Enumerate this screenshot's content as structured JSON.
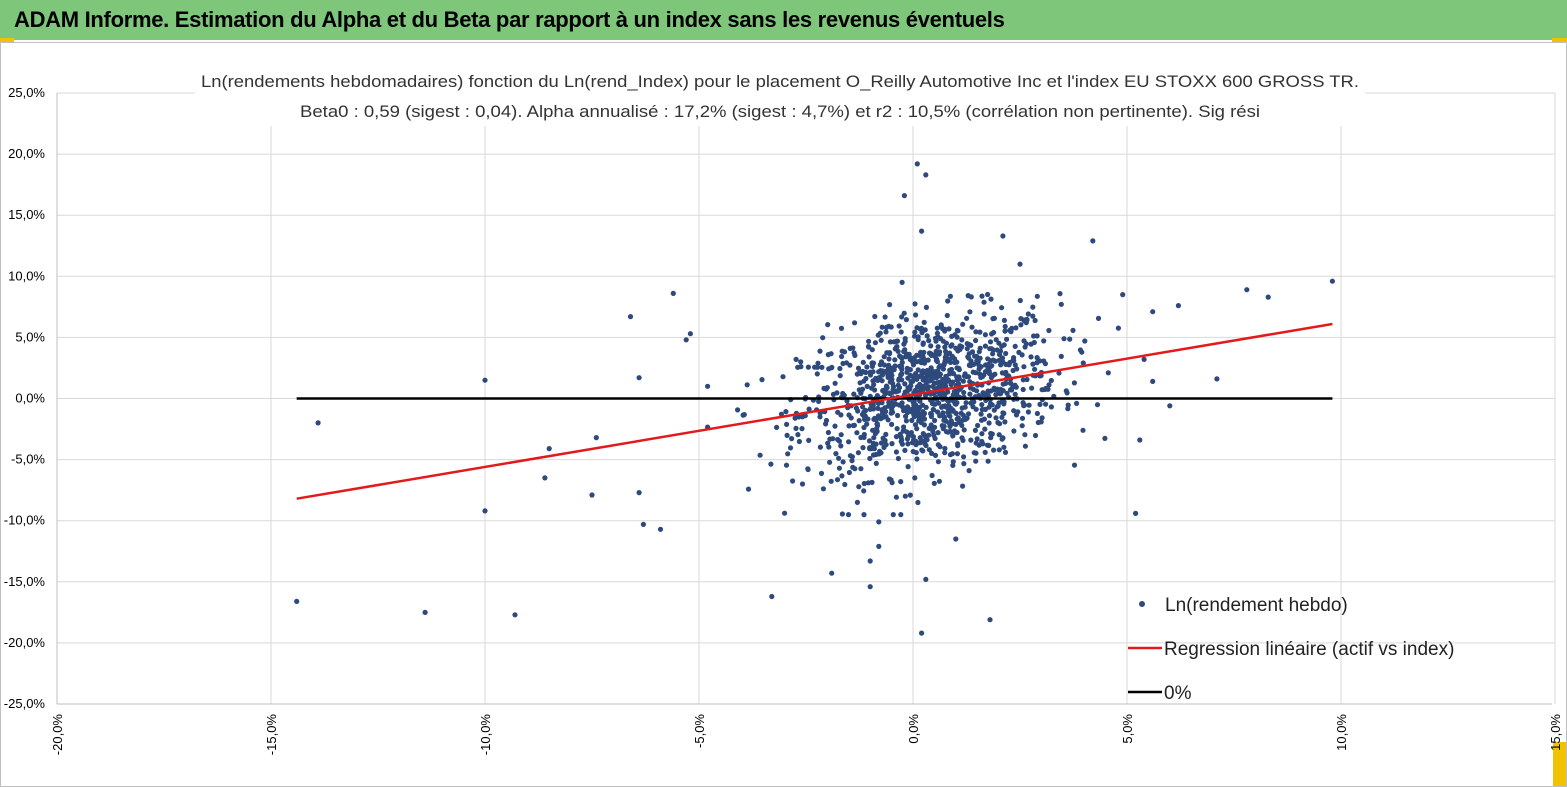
{
  "header": {
    "title": "ADAM Informe. Estimation du Alpha et du Beta par rapport à un index sans les revenus éventuels"
  },
  "colors": {
    "header_bg": "#7dc67a",
    "corner": "#f2c200",
    "points": "#2e4a7d",
    "regression": "#e31a1c",
    "zero": "#000000",
    "grid": "#d9d9d9"
  },
  "chart_data": {
    "type": "scatter",
    "title": "Ln(rendements hebdomadaires) fonction du Ln(rend_Index) pour le placement O_Reilly Automotive Inc et l'index EU STOXX 600 GROSS TR.",
    "subtitle": "Beta0 : 0,59 (sigest : 0,04). Alpha annualisé : 17,2% (sigest : 4,7%) et r2 : 10,5% (corrélation non pertinente). Sig rési",
    "xlim": [
      -20,
      15
    ],
    "ylim": [
      -25,
      25
    ],
    "x_ticks": [
      -20,
      -15,
      -10,
      -5,
      0,
      5,
      10,
      15
    ],
    "y_ticks": [
      25,
      20,
      15,
      10,
      5,
      0,
      -5,
      -10,
      -15,
      -20,
      -25
    ],
    "x_tick_labels": [
      "-20,0%",
      "-15,0%",
      "-10,0%",
      "-5,0%",
      "0,0%",
      "5,0%",
      "10,0%",
      "15,0%"
    ],
    "y_tick_labels": [
      "25,0%",
      "20,0%",
      "15,0%",
      "10,0%",
      "5,0%",
      "0,0%",
      "-5,0%",
      "-10,0%",
      "-15,0%",
      "-20,0%",
      "-25,0%"
    ],
    "legend": {
      "position": "bottom-right",
      "entries": [
        "Ln(rendement hebdo)",
        "Regression linéaire (actif vs index)",
        "0%"
      ]
    },
    "regression": {
      "name": "Regression linéaire (actif vs index)",
      "x": [
        -14.4,
        9.8
      ],
      "y": [
        -8.2,
        6.1
      ]
    },
    "zero_line": {
      "name": "0%",
      "x": [
        -14.4,
        9.8
      ],
      "y": [
        0,
        0
      ]
    },
    "outliers": {
      "name": "Ln(rendement hebdo)",
      "points": [
        [
          -14.4,
          -16.6
        ],
        [
          -13.9,
          -2.0
        ],
        [
          -11.4,
          -17.5
        ],
        [
          -10.0,
          1.5
        ],
        [
          -10.0,
          -9.2
        ],
        [
          -9.3,
          -17.7
        ],
        [
          -8.6,
          -6.5
        ],
        [
          -8.5,
          -4.1
        ],
        [
          -7.5,
          -7.9
        ],
        [
          -7.4,
          -3.2
        ],
        [
          -6.6,
          6.7
        ],
        [
          -6.4,
          -7.7
        ],
        [
          -6.3,
          -10.3
        ],
        [
          -6.4,
          1.7
        ],
        [
          -5.9,
          -10.7
        ],
        [
          -5.6,
          8.6
        ],
        [
          -5.3,
          4.8
        ],
        [
          -5.2,
          5.3
        ],
        [
          -3.3,
          -16.2
        ],
        [
          -1.9,
          -14.3
        ],
        [
          -1.0,
          -15.4
        ],
        [
          -1.0,
          -13.3
        ],
        [
          -0.8,
          -12.1
        ],
        [
          -0.8,
          -10.1
        ],
        [
          0.1,
          19.2
        ],
        [
          -0.2,
          16.6
        ],
        [
          0.3,
          18.3
        ],
        [
          0.2,
          13.7
        ],
        [
          0.3,
          -14.8
        ],
        [
          0.2,
          -19.2
        ],
        [
          1.8,
          -18.1
        ],
        [
          2.1,
          13.3
        ],
        [
          2.5,
          11.0
        ],
        [
          4.2,
          12.9
        ],
        [
          4.9,
          8.5
        ],
        [
          5.6,
          7.1
        ],
        [
          6.2,
          7.6
        ],
        [
          7.8,
          8.9
        ],
        [
          8.3,
          8.3
        ],
        [
          9.8,
          9.6
        ],
        [
          5.2,
          -9.4
        ],
        [
          5.3,
          -3.4
        ],
        [
          6.0,
          -0.6
        ],
        [
          7.1,
          1.6
        ],
        [
          5.6,
          1.4
        ],
        [
          5.4,
          3.2
        ],
        [
          1.0,
          -11.5
        ],
        [
          -1.3,
          -8.5
        ]
      ]
    },
    "cluster": {
      "name": "Ln(rendement hebdo)",
      "count": 1150,
      "center": [
        0.4,
        0.5
      ],
      "spread_x": 1.5,
      "spread_y": 3.1,
      "beta": 0.59
    }
  }
}
